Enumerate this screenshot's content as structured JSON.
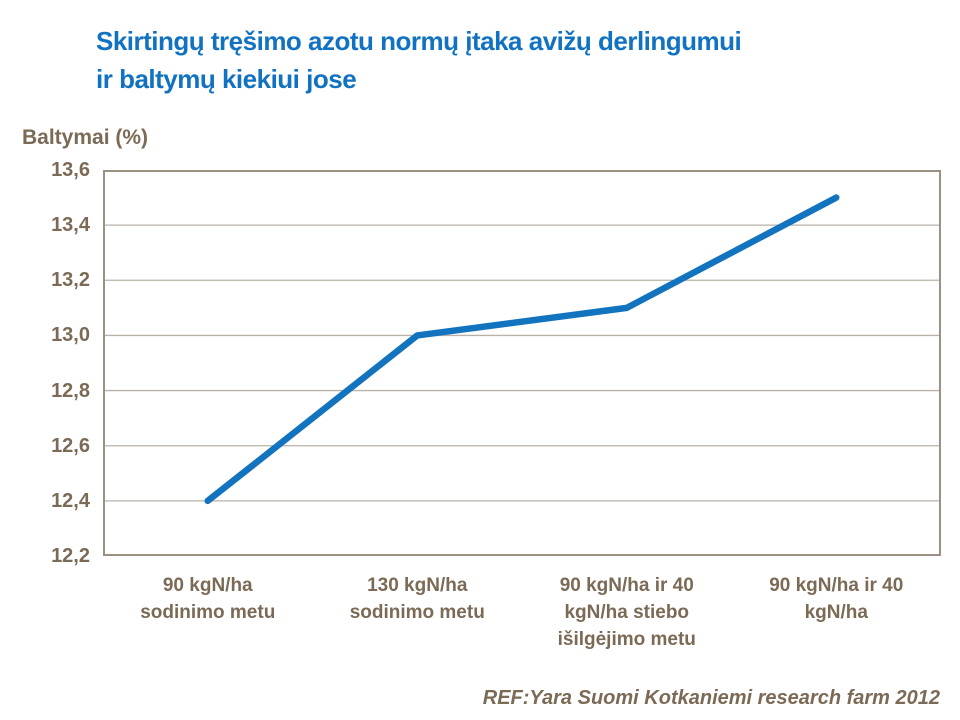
{
  "title": {
    "lines": [
      "Skirtingų tręšimo azotu normų įtaka avižų derlingumui",
      "ir baltymų kiekiui jose"
    ]
  },
  "footer": {
    "text": "REF:Yara Suomi Kotkaniemi research farm 2012"
  },
  "chart_data": {
    "type": "line",
    "title": "Skirtingų tręšimo azotu normų įtaka avižų derlingumui ir baltymų kiekiui jose",
    "ylabel": "Baltymai (%)",
    "xlabel": "",
    "categories": [
      "90 kgN/ha sodinimo metu",
      "130 kgN/ha sodinimo metu",
      "90 kgN/ha ir 40 kgN/ha stiebo išilgėjimo metu",
      "90 kgN/ha ir 40 kgN/ha"
    ],
    "values": [
      12.4,
      13.0,
      13.1,
      13.5
    ],
    "ylim": [
      12.2,
      13.6
    ],
    "ytick_step": 0.2,
    "decimal_separator": ",",
    "grid": "horizontal",
    "legend_position": "none",
    "annotation": "REF:Yara Suomi Kotkaniemi research farm 2012"
  },
  "colors": {
    "background": "#FFFFFF",
    "title": "#1172C2",
    "line": "#1273BE",
    "axis_text": "#7B6A55",
    "gridline": "#BAB2A8",
    "plot_border": "#9A9084"
  }
}
